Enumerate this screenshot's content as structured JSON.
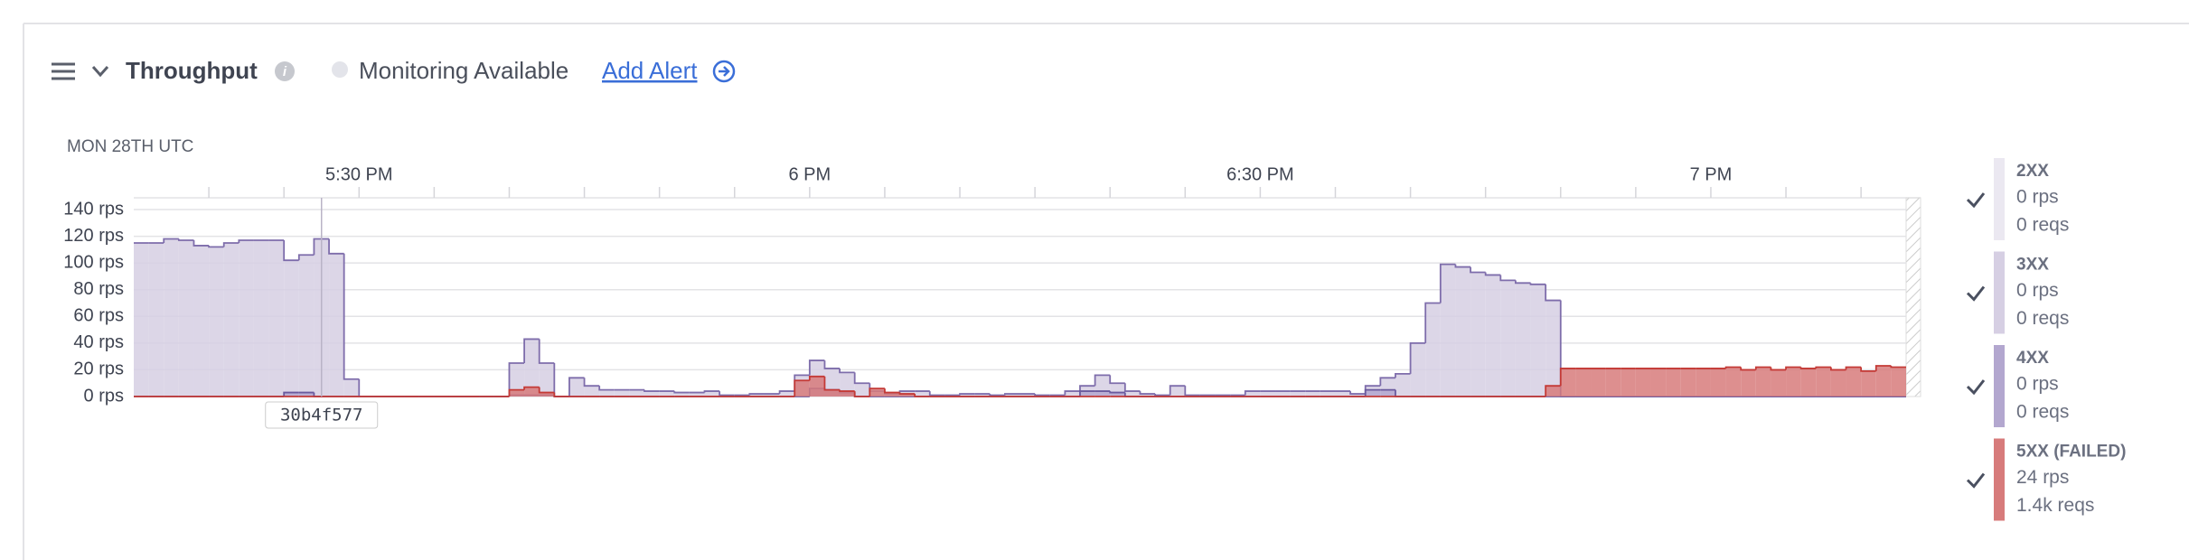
{
  "header": {
    "title": "Throughput",
    "status": "Monitoring Available",
    "link": "Add Alert"
  },
  "chart_data": {
    "type": "step-area",
    "date_label": "MON 28TH UTC",
    "x": [
      1035,
      1036,
      1037,
      1038,
      1039,
      1040,
      1041,
      1042,
      1043,
      1044,
      1045,
      1046,
      1047,
      1048,
      1049,
      1050,
      1051,
      1052,
      1053,
      1054,
      1055,
      1056,
      1057,
      1058,
      1059,
      1060,
      1061,
      1062,
      1063,
      1064,
      1065,
      1066,
      1067,
      1068,
      1069,
      1070,
      1071,
      1072,
      1073,
      1074,
      1075,
      1076,
      1077,
      1078,
      1079,
      1080,
      1081,
      1082,
      1083,
      1084,
      1085,
      1086,
      1087,
      1088,
      1089,
      1090,
      1091,
      1092,
      1093,
      1094,
      1095,
      1096,
      1097,
      1098,
      1099,
      1100,
      1101,
      1102,
      1103,
      1104,
      1105,
      1106,
      1107,
      1108,
      1109,
      1110,
      1111,
      1112,
      1113,
      1114,
      1115,
      1116,
      1117,
      1118,
      1119,
      1120,
      1121,
      1122,
      1123,
      1124,
      1125,
      1126,
      1127,
      1128,
      1129,
      1130,
      1131,
      1132,
      1133,
      1134,
      1135,
      1136,
      1137,
      1138,
      1139,
      1140,
      1141,
      1142,
      1143,
      1144,
      1145,
      1146,
      1147,
      1148,
      1149,
      1150,
      1151,
      1152
    ],
    "xlim": [
      1035,
      1153
    ],
    "xticks": [
      {
        "value": 1050,
        "label": "5:30 PM"
      },
      {
        "value": 1080,
        "label": "6 PM"
      },
      {
        "value": 1110,
        "label": "6:30 PM"
      },
      {
        "value": 1140,
        "label": "7 PM"
      }
    ],
    "xticks_minor": [
      1040,
      1045,
      1055,
      1060,
      1065,
      1070,
      1075,
      1085,
      1090,
      1095,
      1100,
      1105,
      1115,
      1120,
      1125,
      1130,
      1135,
      1145,
      1150
    ],
    "ylim": [
      0,
      140
    ],
    "yticks": [
      {
        "value": 0,
        "label": "0 rps"
      },
      {
        "value": 20,
        "label": "20 rps"
      },
      {
        "value": 40,
        "label": "40 rps"
      },
      {
        "value": 60,
        "label": "60 rps"
      },
      {
        "value": 80,
        "label": "80 rps"
      },
      {
        "value": 100,
        "label": "100 rps"
      },
      {
        "value": 120,
        "label": "120 rps"
      },
      {
        "value": 140,
        "label": "140 rps"
      }
    ],
    "grid": true,
    "annotations": [
      {
        "x": 1047.5,
        "label": "30b4f577"
      }
    ],
    "series": [
      {
        "name": "2XX",
        "color": "#ebe8f1",
        "rate": "0 rps",
        "requests": "0 reqs"
      },
      {
        "name": "3XX",
        "color": "#d6cfe3",
        "stroke": "#7e6dab",
        "rate": "0 rps",
        "requests": "0 reqs",
        "values": [
          115,
          115,
          118,
          117,
          113,
          112,
          115,
          117,
          117,
          117,
          102,
          106,
          118,
          107,
          13,
          0,
          0,
          0,
          0,
          0,
          0,
          0,
          0,
          0,
          0,
          25,
          43,
          25,
          0,
          14,
          8,
          5,
          5,
          5,
          4,
          4,
          3,
          3,
          4,
          1,
          1,
          2,
          2,
          4,
          16,
          27,
          21,
          18,
          10,
          4,
          2,
          4,
          4,
          1,
          1,
          2,
          2,
          1,
          2,
          2,
          1,
          1,
          4,
          8,
          16,
          10,
          4,
          2,
          1,
          8,
          1,
          1,
          1,
          1,
          4,
          4,
          4,
          4,
          4,
          4,
          4,
          2,
          8,
          14,
          17,
          40,
          70,
          99,
          97,
          93,
          91,
          87,
          85,
          84,
          72,
          0,
          0,
          0,
          0,
          0,
          0,
          0,
          0,
          0,
          0,
          0,
          0,
          0,
          0,
          0,
          0,
          0,
          0,
          0,
          0,
          0,
          0,
          0
        ]
      },
      {
        "name": "4XX",
        "color": "#b3a7cf",
        "stroke": "#6a5a9e",
        "rate": "0 rps",
        "requests": "0 reqs",
        "values": [
          0,
          0,
          0,
          0,
          0,
          0,
          0,
          0,
          0,
          0,
          3,
          3,
          0,
          0,
          0,
          0,
          0,
          0,
          0,
          0,
          0,
          0,
          0,
          0,
          0,
          1,
          1,
          1,
          0,
          0,
          0,
          0,
          0,
          0,
          0,
          0,
          0,
          0,
          0,
          0,
          0,
          0,
          0,
          0,
          0,
          6,
          5,
          3,
          0,
          0,
          0,
          0,
          0,
          0,
          0,
          0,
          0,
          0,
          0,
          0,
          0,
          0,
          0,
          4,
          4,
          3,
          0,
          0,
          0,
          0,
          0,
          0,
          0,
          0,
          0,
          0,
          0,
          0,
          0,
          0,
          0,
          0,
          5,
          5,
          0,
          0,
          0,
          0,
          0,
          0,
          0,
          0,
          0,
          0,
          0,
          0,
          0,
          0,
          0,
          0,
          0,
          0,
          0,
          0,
          0,
          0,
          0,
          0,
          0,
          0,
          0,
          0,
          0,
          0,
          0,
          0,
          0,
          0
        ]
      },
      {
        "name": "5XX (FAILED)",
        "color": "#d77b7b",
        "stroke": "#c43a36",
        "rate": "24 rps",
        "requests": "1.4k reqs",
        "values": [
          0,
          0,
          0,
          0,
          0,
          0,
          0,
          0,
          0,
          0,
          0,
          0,
          0,
          0,
          0,
          0,
          0,
          0,
          0,
          0,
          0,
          0,
          0,
          0,
          0,
          5,
          7,
          3,
          0,
          0,
          0,
          0,
          0,
          0,
          0,
          0,
          0,
          0,
          0,
          0,
          0,
          0,
          0,
          0,
          12,
          15,
          5,
          4,
          0,
          6,
          3,
          2,
          0,
          0,
          0,
          0,
          0,
          0,
          0,
          0,
          0,
          0,
          0,
          0,
          0,
          0,
          0,
          0,
          0,
          0,
          0,
          0,
          0,
          0,
          0,
          0,
          0,
          0,
          0,
          0,
          0,
          0,
          0,
          0,
          0,
          0,
          0,
          0,
          0,
          0,
          0,
          0,
          0,
          0,
          8,
          21,
          21,
          21,
          21,
          21,
          21,
          21,
          21,
          21,
          21,
          21,
          22,
          20,
          22,
          20,
          22,
          21,
          22,
          20,
          22,
          19,
          23,
          22
        ]
      }
    ]
  }
}
